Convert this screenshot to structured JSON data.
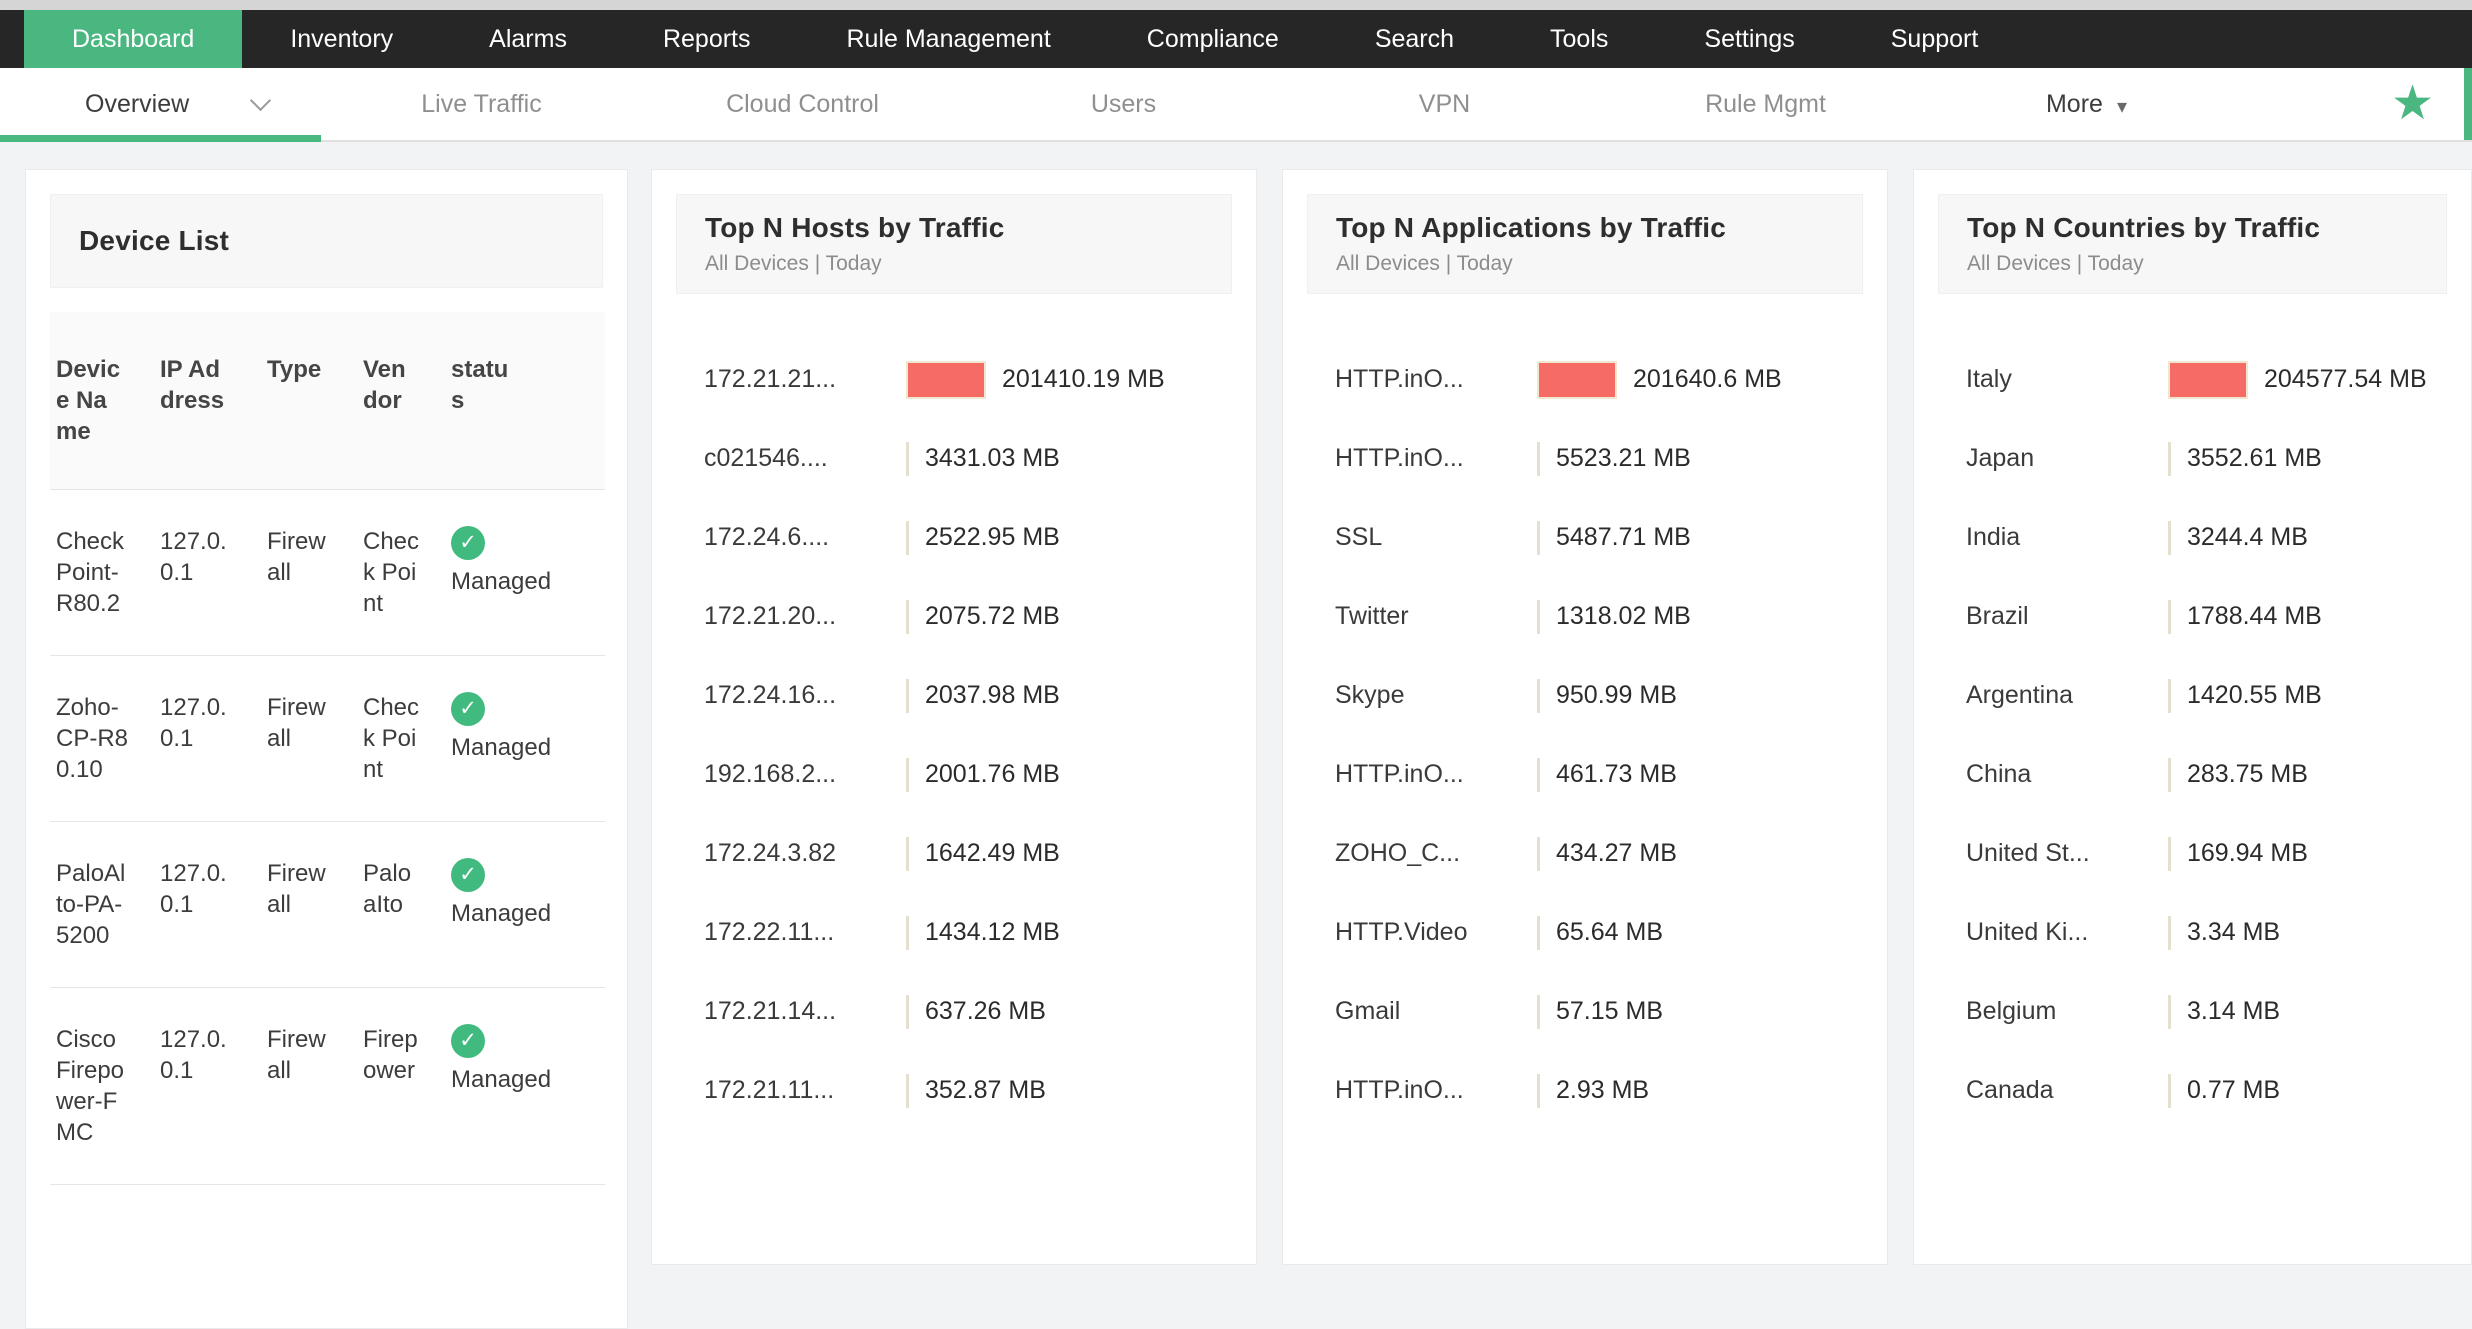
{
  "nav": {
    "items": [
      {
        "label": "Dashboard",
        "active": true
      },
      {
        "label": "Inventory",
        "active": false
      },
      {
        "label": "Alarms",
        "active": false
      },
      {
        "label": "Reports",
        "active": false
      },
      {
        "label": "Rule Management",
        "active": false
      },
      {
        "label": "Compliance",
        "active": false
      },
      {
        "label": "Search",
        "active": false
      },
      {
        "label": "Tools",
        "active": false
      },
      {
        "label": "Settings",
        "active": false
      },
      {
        "label": "Support",
        "active": false
      }
    ]
  },
  "tabs": {
    "items": [
      {
        "label": "Overview",
        "active": true,
        "emphasis": true,
        "dropdown": "chevron"
      },
      {
        "label": "Live Traffic",
        "active": false,
        "emphasis": false,
        "dropdown": null
      },
      {
        "label": "Cloud Control",
        "active": false,
        "emphasis": false,
        "dropdown": null
      },
      {
        "label": "Users",
        "active": false,
        "emphasis": false,
        "dropdown": null
      },
      {
        "label": "VPN",
        "active": false,
        "emphasis": false,
        "dropdown": null
      },
      {
        "label": "Rule Mgmt",
        "active": false,
        "emphasis": false,
        "dropdown": null
      },
      {
        "label": "More",
        "active": false,
        "emphasis": true,
        "dropdown": "triangle"
      }
    ],
    "favorite_icon": "star-icon"
  },
  "device_list": {
    "title": "Device List",
    "columns": [
      "Device Name",
      "IP Address",
      "Type",
      "Vendor",
      "status"
    ],
    "status_icon": "check-circle-icon",
    "rows": [
      {
        "name": "CheckPoint-R80.2",
        "ip": "127.0.0.1",
        "type": "Firewall",
        "vendor": "Check Point",
        "status": "Managed"
      },
      {
        "name": "Zoho-CP-R80.10",
        "ip": "127.0.0.1",
        "type": "Firewall",
        "vendor": "Check Point",
        "status": "Managed"
      },
      {
        "name": "PaloAlto-PA-5200",
        "ip": "127.0.0.1",
        "type": "Firewall",
        "vendor": "PaloaIto",
        "status": "Managed"
      },
      {
        "name": "Cisco Firepower-FMC",
        "ip": "127.0.0.1",
        "type": "Firewall",
        "vendor": "Firepower",
        "status": "Managed"
      }
    ]
  },
  "panels": [
    {
      "id": "hosts",
      "title": "Top N Hosts by Traffic",
      "subtitle": "All Devices | Today",
      "type": "bar",
      "unit": "MB",
      "rows": [
        {
          "label": "172.21.21...",
          "value_mb": 201410.19,
          "display": "201410.19 MB"
        },
        {
          "label": "c021546....",
          "value_mb": 3431.03,
          "display": "3431.03 MB"
        },
        {
          "label": "172.24.6....",
          "value_mb": 2522.95,
          "display": "2522.95 MB"
        },
        {
          "label": "172.21.20...",
          "value_mb": 2075.72,
          "display": "2075.72 MB"
        },
        {
          "label": "172.24.16...",
          "value_mb": 2037.98,
          "display": "2037.98 MB"
        },
        {
          "label": "192.168.2...",
          "value_mb": 2001.76,
          "display": "2001.76 MB"
        },
        {
          "label": "172.24.3.82",
          "value_mb": 1642.49,
          "display": "1642.49 MB"
        },
        {
          "label": "172.22.11...",
          "value_mb": 1434.12,
          "display": "1434.12 MB"
        },
        {
          "label": "172.21.14...",
          "value_mb": 637.26,
          "display": "637.26 MB"
        },
        {
          "label": "172.21.11...",
          "value_mb": 352.87,
          "display": "352.87 MB"
        }
      ]
    },
    {
      "id": "applications",
      "title": "Top N Applications by Traffic",
      "subtitle": "All Devices | Today",
      "type": "bar",
      "unit": "MB",
      "rows": [
        {
          "label": "HTTP.inO...",
          "value_mb": 201640.6,
          "display": "201640.6 MB"
        },
        {
          "label": "HTTP.inO...",
          "value_mb": 5523.21,
          "display": "5523.21 MB"
        },
        {
          "label": "SSL",
          "value_mb": 5487.71,
          "display": "5487.71 MB"
        },
        {
          "label": "Twitter",
          "value_mb": 1318.02,
          "display": "1318.02 MB"
        },
        {
          "label": "Skype",
          "value_mb": 950.99,
          "display": "950.99 MB"
        },
        {
          "label": "HTTP.inO...",
          "value_mb": 461.73,
          "display": "461.73 MB"
        },
        {
          "label": "ZOHO_C...",
          "value_mb": 434.27,
          "display": "434.27 MB"
        },
        {
          "label": "HTTP.Video",
          "value_mb": 65.64,
          "display": "65.64 MB"
        },
        {
          "label": "Gmail",
          "value_mb": 57.15,
          "display": "57.15 MB"
        },
        {
          "label": "HTTP.inO...",
          "value_mb": 2.93,
          "display": "2.93 MB"
        }
      ]
    },
    {
      "id": "countries",
      "title": "Top N Countries by Traffic",
      "subtitle": "All Devices | Today",
      "type": "bar",
      "unit": "MB",
      "rows": [
        {
          "label": "Italy",
          "value_mb": 204577.54,
          "display": "204577.54 MB"
        },
        {
          "label": "Japan",
          "value_mb": 3552.61,
          "display": "3552.61 MB"
        },
        {
          "label": "India",
          "value_mb": 3244.4,
          "display": "3244.4 MB"
        },
        {
          "label": "Brazil",
          "value_mb": 1788.44,
          "display": "1788.44 MB"
        },
        {
          "label": "Argentina",
          "value_mb": 1420.55,
          "display": "1420.55 MB"
        },
        {
          "label": "China",
          "value_mb": 283.75,
          "display": "283.75 MB"
        },
        {
          "label": "United St...",
          "value_mb": 169.94,
          "display": "169.94 MB"
        },
        {
          "label": "United Ki...",
          "value_mb": 3.34,
          "display": "3.34 MB"
        },
        {
          "label": "Belgium",
          "value_mb": 3.14,
          "display": "3.14 MB"
        },
        {
          "label": "Canada",
          "value_mb": 0.77,
          "display": "0.77 MB"
        }
      ]
    }
  ],
  "colors": {
    "accent_green": "#4ab781",
    "status_green": "#41ba7f",
    "bar_red": "#f76b66",
    "bar_sliver": "#e5dfd0",
    "nav_dark": "#262626"
  }
}
